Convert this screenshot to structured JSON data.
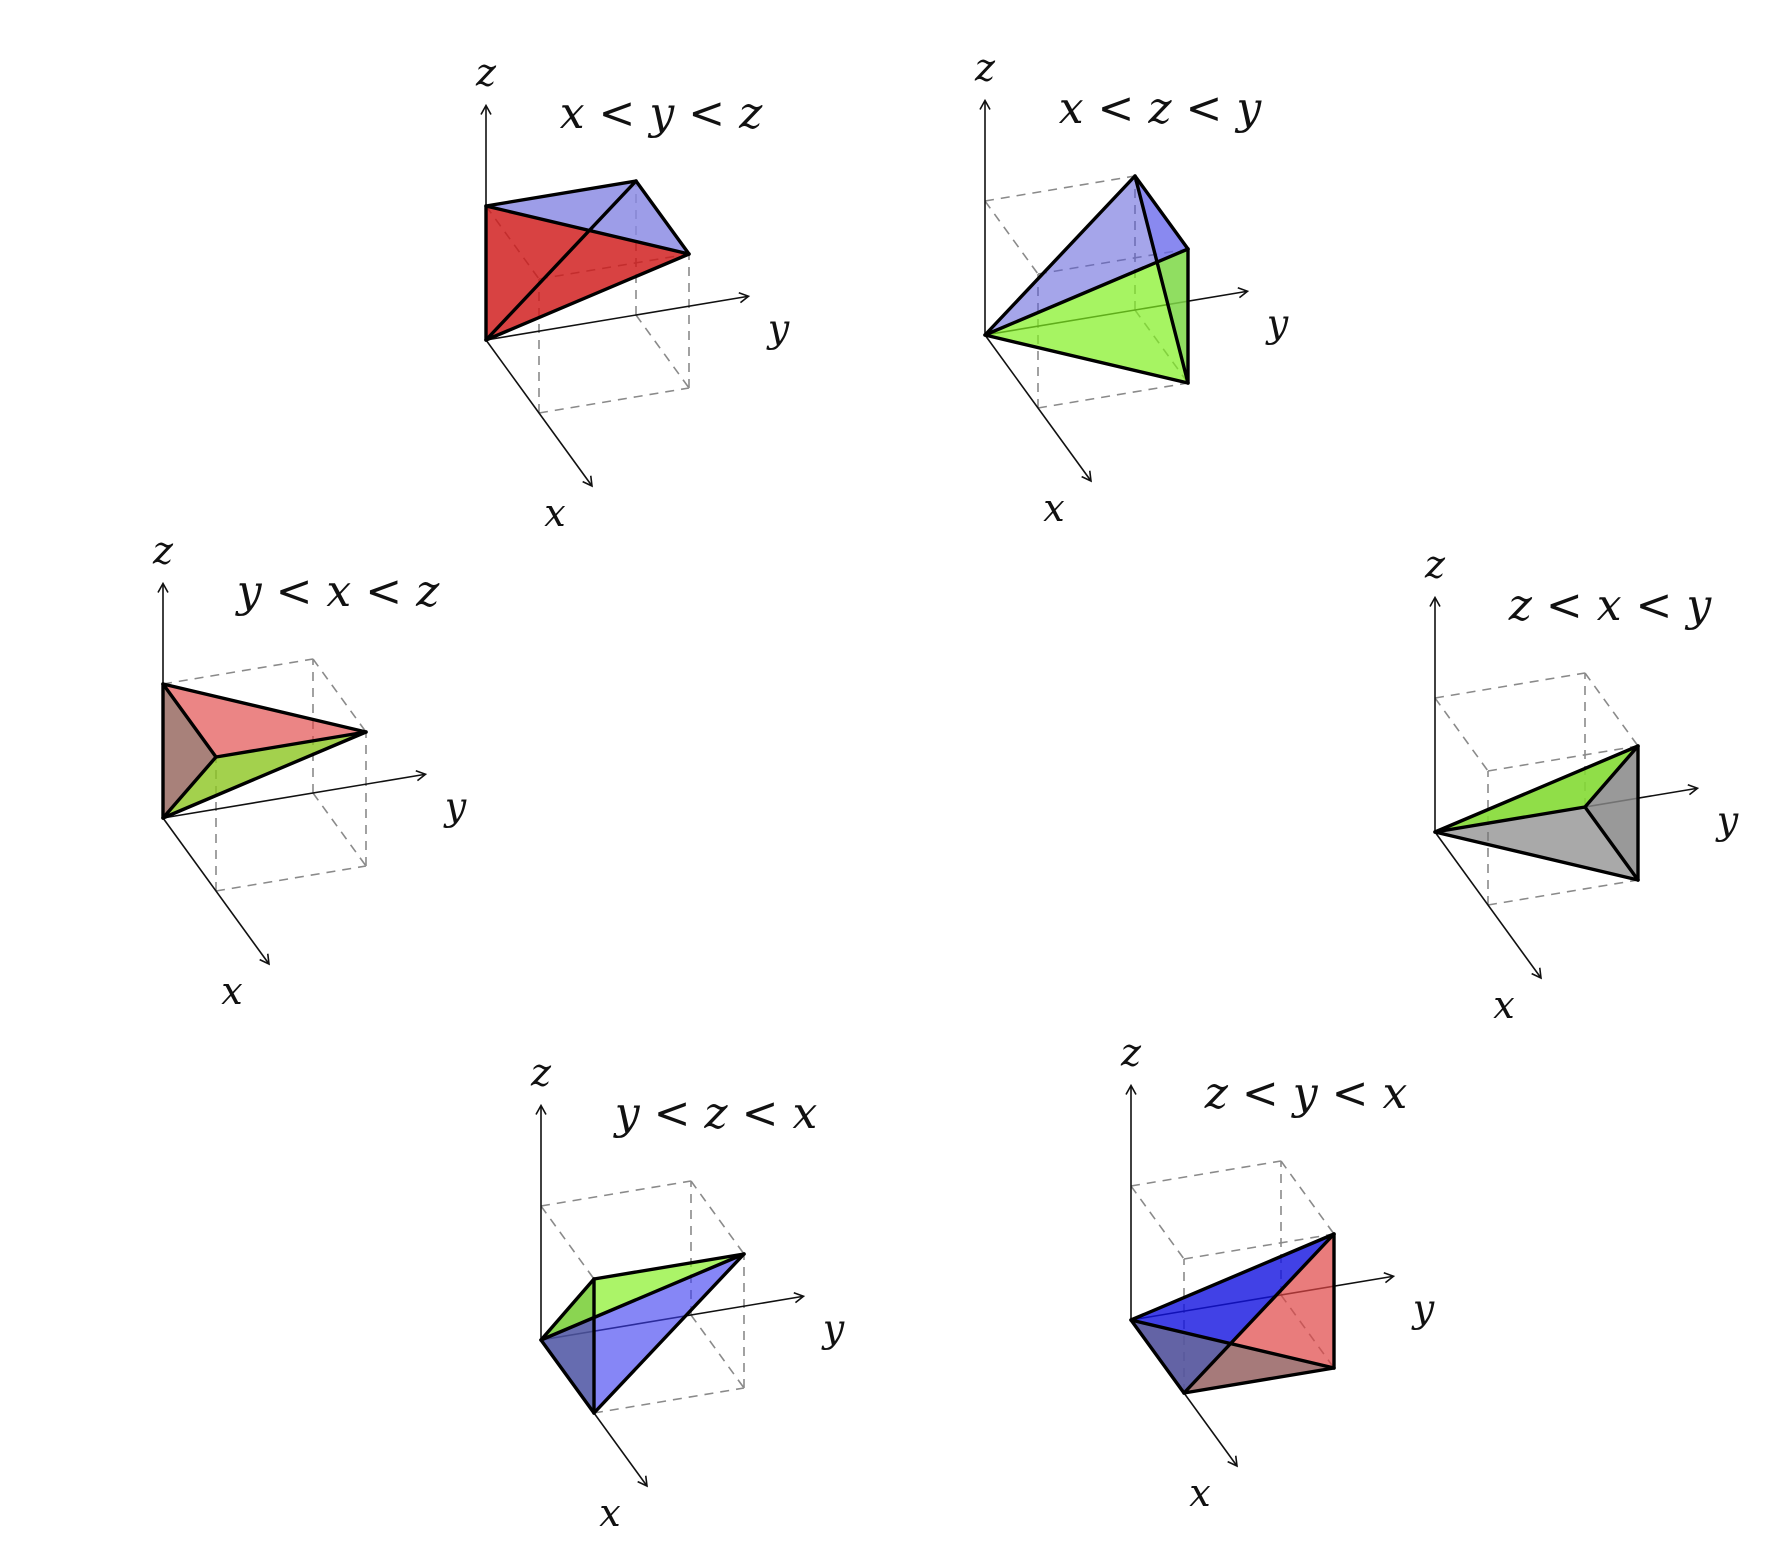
{
  "axis_labels": {
    "x": "x",
    "y": "y",
    "z": "z"
  },
  "panels": [
    {
      "id": "xyz",
      "title": "x < y < z",
      "faces": [
        {
          "name": "face-red",
          "color": "#d01818",
          "opacity": 0.82
        },
        {
          "name": "face-gray",
          "color": "#bdbdbd",
          "opacity": 0.6
        },
        {
          "name": "face-blue",
          "color": "#6e6ef5",
          "opacity": 0.55
        }
      ]
    },
    {
      "id": "xzy",
      "title": "x < z < y",
      "faces": [
        {
          "name": "face-blue",
          "color": "#5b5bd8",
          "opacity": 0.55
        },
        {
          "name": "face-blue",
          "color": "#6e6ef5",
          "opacity": 0.5
        },
        {
          "name": "face-green",
          "color": "#80f020",
          "opacity": 0.7
        }
      ]
    },
    {
      "id": "yxz",
      "title": "y < x < z",
      "faces": [
        {
          "name": "face-brown",
          "color": "#7a3d33",
          "opacity": 0.65
        },
        {
          "name": "face-red",
          "color": "#e04444",
          "opacity": 0.65
        },
        {
          "name": "face-green",
          "color": "#8cc620",
          "opacity": 0.8
        }
      ]
    },
    {
      "id": "zxy",
      "title": "z < x < y",
      "faces": [
        {
          "name": "face-gray",
          "color": "#bdbdbd",
          "opacity": 0.6
        },
        {
          "name": "face-gray",
          "color": "#707070",
          "opacity": 0.6
        },
        {
          "name": "face-green",
          "color": "#88f028",
          "opacity": 0.75
        }
      ]
    },
    {
      "id": "yzx",
      "title": "y < z < x",
      "faces": [
        {
          "name": "face-blue",
          "color": "#3c3cf0",
          "opacity": 0.62
        },
        {
          "name": "face-gray",
          "color": "#545e8a",
          "opacity": 0.65
        },
        {
          "name": "face-green",
          "color": "#88f028",
          "opacity": 0.7
        }
      ]
    },
    {
      "id": "zyx",
      "title": "z < y < x",
      "faces": [
        {
          "name": "face-blue",
          "color": "#1212e0",
          "opacity": 0.8
        },
        {
          "name": "face-red",
          "color": "#e04444",
          "opacity": 0.7
        },
        {
          "name": "face-gray",
          "color": "#7a7a7a",
          "opacity": 0.6
        }
      ]
    }
  ]
}
